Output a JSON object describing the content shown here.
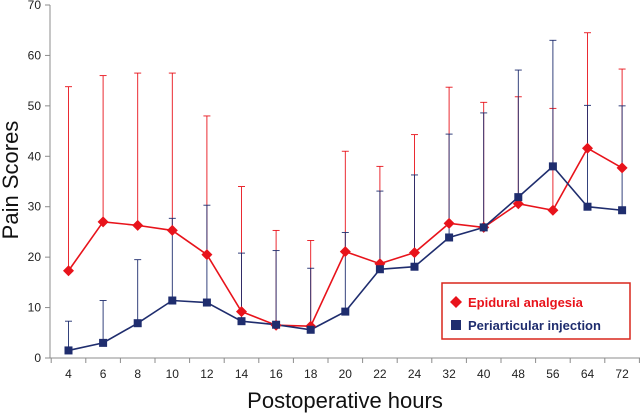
{
  "chart_data": {
    "type": "line",
    "xlabel": "Postoperative hours",
    "ylabel": "Pain Scores",
    "ylim": [
      0,
      70
    ],
    "yticks": [
      "0",
      "10",
      "20",
      "30",
      "40",
      "50",
      "60",
      "70"
    ],
    "categories": [
      "4",
      "6",
      "8",
      "10",
      "12",
      "14",
      "16",
      "18",
      "20",
      "22",
      "24",
      "32",
      "40",
      "48",
      "56",
      "64",
      "72"
    ],
    "grid": false,
    "legend_position": "bottom-right",
    "error_bars": "upper",
    "series": [
      {
        "name": "Epidural analgesia",
        "color": "#e8131b",
        "marker": "diamond",
        "values": [
          17.3,
          27.0,
          26.3,
          25.3,
          20.5,
          9.2,
          6.5,
          6.3,
          21.1,
          18.7,
          20.9,
          26.7,
          25.9,
          30.6,
          29.3,
          41.6,
          37.7
        ],
        "error_upper": [
          53.8,
          56.0,
          56.5,
          56.5,
          48.0,
          34.0,
          25.3,
          23.3,
          41.0,
          38.0,
          44.3,
          53.7,
          50.7,
          51.8,
          49.5,
          64.5,
          57.3
        ]
      },
      {
        "name": "Periarticular injection",
        "color": "#1f2d6e",
        "marker": "square",
        "values": [
          1.5,
          3.0,
          6.9,
          11.4,
          11.0,
          7.3,
          6.6,
          5.6,
          9.2,
          17.6,
          18.1,
          23.9,
          25.9,
          31.9,
          38.0,
          30.0,
          29.3
        ],
        "error_upper": [
          7.3,
          11.4,
          19.5,
          27.7,
          30.3,
          20.8,
          21.3,
          17.8,
          24.9,
          33.1,
          36.3,
          44.4,
          48.6,
          57.1,
          63.0,
          50.1,
          50.0
        ]
      }
    ]
  }
}
